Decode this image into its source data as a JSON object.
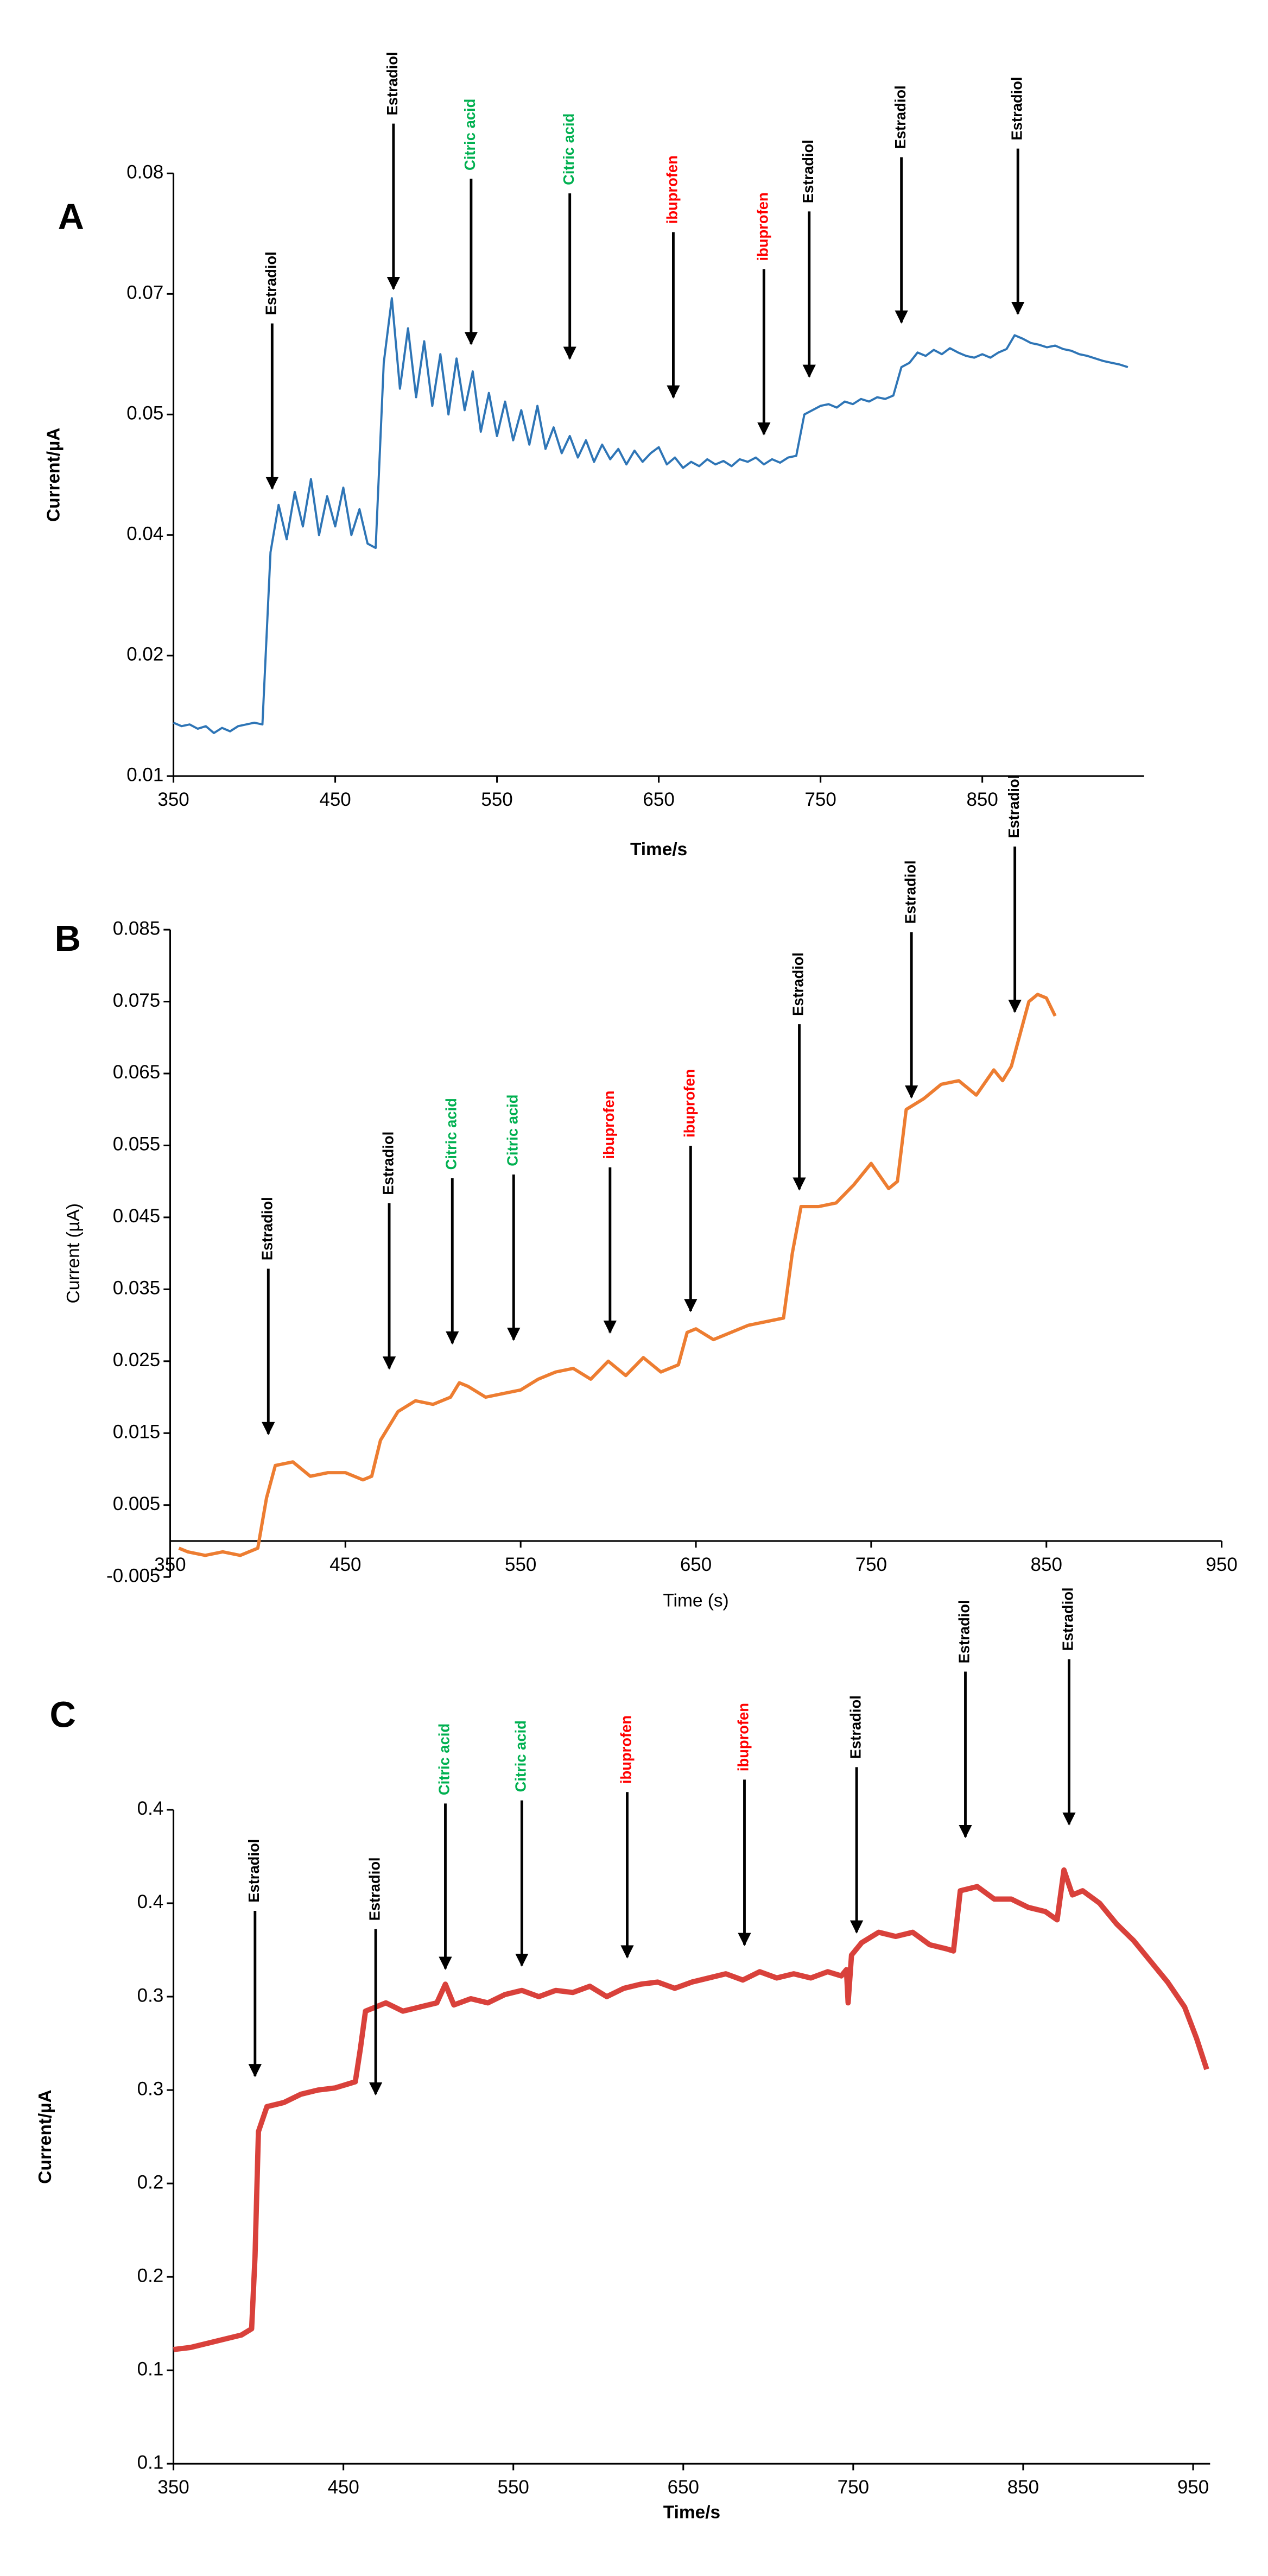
{
  "chart_data": [
    {
      "type": "line",
      "title": "A",
      "xlabel": "Time/s",
      "ylabel": "Current/µA",
      "color": "#2e75b6",
      "xlim": [
        350,
        950
      ],
      "xticks": [
        350,
        450,
        550,
        650,
        750,
        850
      ],
      "ylim": [
        0.01,
        0.08
      ],
      "yticks": [
        0.01,
        {
          "value": 0.024,
          "label": "0.02"
        },
        {
          "value": 0.038,
          "label": "0.04"
        },
        {
          "value": 0.052,
          "label": "0.05"
        },
        {
          "value": 0.066,
          "label": "0.07"
        },
        0.08
      ],
      "x": [
        350,
        355,
        360,
        365,
        370,
        375,
        380,
        385,
        390,
        395,
        400,
        405,
        410,
        415,
        420,
        425,
        430,
        435,
        440,
        445,
        450,
        455,
        460,
        465,
        470,
        475,
        480,
        485,
        490,
        495,
        500,
        505,
        510,
        515,
        520,
        525,
        530,
        535,
        540,
        545,
        550,
        555,
        560,
        565,
        570,
        575,
        580,
        585,
        590,
        595,
        600,
        605,
        610,
        615,
        620,
        625,
        630,
        635,
        640,
        645,
        650,
        655,
        660,
        665,
        670,
        675,
        680,
        685,
        690,
        695,
        700,
        705,
        710,
        715,
        720,
        725,
        730,
        735,
        740,
        745,
        750,
        755,
        760,
        765,
        770,
        775,
        780,
        785,
        790,
        795,
        800,
        805,
        810,
        815,
        820,
        825,
        830,
        835,
        840,
        845,
        850,
        855,
        860,
        865,
        870,
        875,
        880,
        885,
        890,
        895,
        900,
        905,
        910,
        915,
        920,
        925,
        930,
        935,
        940
      ],
      "values": [
        0.0162,
        0.0158,
        0.016,
        0.0155,
        0.0158,
        0.015,
        0.0156,
        0.0152,
        0.0158,
        0.016,
        0.0162,
        0.016,
        0.036,
        0.0415,
        0.0375,
        0.043,
        0.039,
        0.0445,
        0.038,
        0.0425,
        0.039,
        0.0435,
        0.038,
        0.041,
        0.037,
        0.0365,
        0.058,
        0.0655,
        0.055,
        0.062,
        0.054,
        0.0605,
        0.053,
        0.059,
        0.052,
        0.0585,
        0.0525,
        0.057,
        0.05,
        0.0545,
        0.0495,
        0.0535,
        0.049,
        0.0525,
        0.0485,
        0.053,
        0.048,
        0.0505,
        0.0475,
        0.0495,
        0.047,
        0.049,
        0.0465,
        0.0485,
        0.0468,
        0.048,
        0.0462,
        0.0478,
        0.0465,
        0.0475,
        0.0482,
        0.0462,
        0.047,
        0.0458,
        0.0465,
        0.046,
        0.0468,
        0.0462,
        0.0466,
        0.046,
        0.0468,
        0.0465,
        0.047,
        0.0462,
        0.0468,
        0.0464,
        0.047,
        0.0472,
        0.052,
        0.0525,
        0.053,
        0.0532,
        0.0528,
        0.0535,
        0.0532,
        0.0538,
        0.0535,
        0.054,
        0.0538,
        0.0542,
        0.0575,
        0.058,
        0.0592,
        0.0588,
        0.0595,
        0.059,
        0.0597,
        0.0592,
        0.0588,
        0.0586,
        0.059,
        0.0586,
        0.0592,
        0.0596,
        0.0612,
        0.0608,
        0.0603,
        0.0601,
        0.0598,
        0.06,
        0.0596,
        0.0594,
        0.059,
        0.0588,
        0.0585,
        0.0582,
        0.058,
        0.0578,
        0.0575
      ],
      "annotations": [
        {
          "text": "Estradiol",
          "color": "#000000",
          "x": 411,
          "y": 0.0434
        },
        {
          "text": "Estradiol",
          "color": "#000000",
          "x": 486,
          "y": 0.0666
        },
        {
          "text": "Citric acid",
          "color": "#00b050",
          "x": 534,
          "y": 0.0602
        },
        {
          "text": "Citric acid",
          "color": "#00b050",
          "x": 595,
          "y": 0.0585
        },
        {
          "text": "ibuprofen",
          "color": "#ff0000",
          "x": 659,
          "y": 0.054
        },
        {
          "text": "ibuprofen",
          "color": "#ff0000",
          "x": 715,
          "y": 0.0497
        },
        {
          "text": "Estradiol",
          "color": "#000000",
          "x": 743,
          "y": 0.0564
        },
        {
          "text": "Estradiol",
          "color": "#000000",
          "x": 800,
          "y": 0.0627
        },
        {
          "text": "Estradiol",
          "color": "#000000",
          "x": 872,
          "y": 0.0637
        }
      ]
    },
    {
      "type": "line",
      "title": "B",
      "xlabel": "Time (s)",
      "ylabel": "Current (µA)",
      "color": "#ed7d31",
      "xlim": [
        350,
        950
      ],
      "xticks": [
        350,
        450,
        550,
        650,
        750,
        850,
        950
      ],
      "ylim": [
        -0.005,
        0.085
      ],
      "yticks": [
        -0.005,
        0.005,
        0.015,
        0.025,
        0.035,
        0.045,
        0.055,
        0.065,
        0.075,
        0.085
      ],
      "x": [
        355,
        360,
        370,
        380,
        390,
        400,
        405,
        410,
        420,
        430,
        440,
        450,
        460,
        465,
        470,
        480,
        490,
        500,
        510,
        515,
        520,
        530,
        540,
        550,
        560,
        570,
        580,
        590,
        600,
        610,
        620,
        630,
        640,
        645,
        650,
        660,
        670,
        680,
        690,
        700,
        705,
        710,
        720,
        730,
        740,
        750,
        760,
        765,
        770,
        780,
        790,
        800,
        810,
        820,
        825,
        830,
        840,
        845,
        850,
        855
      ],
      "values": [
        -0.001,
        -0.0015,
        -0.002,
        -0.0015,
        -0.002,
        -0.001,
        0.006,
        0.0105,
        0.011,
        0.009,
        0.0095,
        0.0095,
        0.0085,
        0.009,
        0.014,
        0.018,
        0.0195,
        0.019,
        0.02,
        0.022,
        0.0215,
        0.02,
        0.0205,
        0.021,
        0.0225,
        0.0235,
        0.024,
        0.0225,
        0.025,
        0.023,
        0.0255,
        0.0235,
        0.0245,
        0.029,
        0.0295,
        0.028,
        0.029,
        0.03,
        0.0305,
        0.031,
        0.04,
        0.0465,
        0.0465,
        0.047,
        0.0495,
        0.0525,
        0.049,
        0.05,
        0.06,
        0.0615,
        0.0635,
        0.064,
        0.062,
        0.0655,
        0.064,
        0.066,
        0.075,
        0.076,
        0.0755,
        0.073
      ],
      "annotations": [
        {
          "text": "Estradiol",
          "color": "#000000",
          "x": 406,
          "y": 0.0149
        },
        {
          "text": "Estradiol",
          "color": "#000000",
          "x": 475,
          "y": 0.024
        },
        {
          "text": "Citric acid",
          "color": "#00b050",
          "x": 511,
          "y": 0.0275
        },
        {
          "text": "Citric acid",
          "color": "#00b050",
          "x": 546,
          "y": 0.028
        },
        {
          "text": "ibuprofen",
          "color": "#ff0000",
          "x": 601,
          "y": 0.029
        },
        {
          "text": "ibuprofen",
          "color": "#ff0000",
          "x": 647,
          "y": 0.032
        },
        {
          "text": "Estradiol",
          "color": "#000000",
          "x": 709,
          "y": 0.0489
        },
        {
          "text": "Estradiol",
          "color": "#000000",
          "x": 773,
          "y": 0.0617
        },
        {
          "text": "Estradiol",
          "color": "#000000",
          "x": 832,
          "y": 0.0736
        }
      ]
    },
    {
      "type": "line",
      "title": "C",
      "xlabel": "Time/s",
      "ylabel": "Current/µA",
      "color": "#d9413b",
      "xlim": [
        350,
        960
      ],
      "xticks": [
        350,
        450,
        550,
        650,
        750,
        850,
        950
      ],
      "ylim": [
        0.1,
        0.415
      ],
      "yticks": [
        0.1,
        {
          "value": 0.145,
          "label": "0.1"
        },
        {
          "value": 0.19,
          "label": "0.2"
        },
        {
          "value": 0.235,
          "label": "0.2"
        },
        {
          "value": 0.28,
          "label": "0.3"
        },
        {
          "value": 0.325,
          "label": "0.3"
        },
        {
          "value": 0.37,
          "label": "0.4"
        },
        {
          "value": 0.415,
          "label": "0.4"
        }
      ],
      "x": [
        350,
        360,
        370,
        380,
        390,
        396,
        398,
        400,
        405,
        415,
        425,
        435,
        445,
        457,
        460,
        463,
        475,
        485,
        495,
        505,
        510,
        515,
        525,
        535,
        545,
        555,
        565,
        575,
        585,
        595,
        605,
        615,
        625,
        635,
        645,
        655,
        665,
        675,
        685,
        695,
        705,
        715,
        725,
        735,
        743,
        746,
        747,
        749,
        755,
        765,
        775,
        785,
        795,
        805,
        809,
        813,
        823,
        833,
        843,
        853,
        863,
        870,
        874,
        879,
        885,
        895,
        905,
        915,
        925,
        935,
        945,
        952,
        958
      ],
      "values": [
        0.155,
        0.156,
        0.158,
        0.16,
        0.162,
        0.165,
        0.2,
        0.26,
        0.272,
        0.274,
        0.278,
        0.28,
        0.281,
        0.284,
        0.3,
        0.318,
        0.322,
        0.318,
        0.32,
        0.322,
        0.331,
        0.321,
        0.324,
        0.322,
        0.326,
        0.328,
        0.325,
        0.328,
        0.327,
        0.33,
        0.325,
        0.329,
        0.331,
        0.332,
        0.329,
        0.332,
        0.334,
        0.336,
        0.333,
        0.337,
        0.334,
        0.336,
        0.334,
        0.337,
        0.335,
        0.338,
        0.322,
        0.345,
        0.351,
        0.356,
        0.354,
        0.356,
        0.35,
        0.348,
        0.347,
        0.376,
        0.378,
        0.372,
        0.372,
        0.368,
        0.366,
        0.362,
        0.386,
        0.374,
        0.376,
        0.37,
        0.36,
        0.352,
        0.342,
        0.332,
        0.32,
        0.305,
        0.29
      ],
      "annotations": [
        {
          "text": "Estradiol",
          "color": "#000000",
          "x": 398,
          "y": 0.2868
        },
        {
          "text": "Estradiol",
          "color": "#000000",
          "x": 469,
          "y": 0.278
        },
        {
          "text": "Citric acid",
          "color": "#00b050",
          "x": 510,
          "y": 0.3385
        },
        {
          "text": "Citric acid",
          "color": "#00b050",
          "x": 555,
          "y": 0.34
        },
        {
          "text": "ibuprofen",
          "color": "#ff0000",
          "x": 617,
          "y": 0.344
        },
        {
          "text": "ibuprofen",
          "color": "#ff0000",
          "x": 686,
          "y": 0.35
        },
        {
          "text": "Estradiol",
          "color": "#000000",
          "x": 752,
          "y": 0.356
        },
        {
          "text": "Estradiol",
          "color": "#000000",
          "x": 816,
          "y": 0.402
        },
        {
          "text": "Estradiol",
          "color": "#000000",
          "x": 877,
          "y": 0.408
        }
      ]
    }
  ]
}
